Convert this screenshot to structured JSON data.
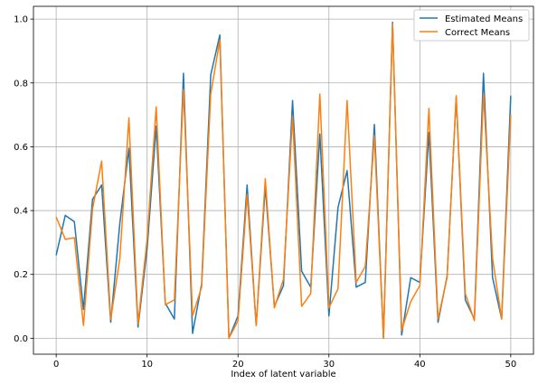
{
  "chart_data": {
    "type": "line",
    "title": "",
    "xlabel": "Index of latent variable",
    "ylabel": "",
    "xlim": [
      -2.5,
      52.5
    ],
    "ylim": [
      -0.05,
      1.04
    ],
    "xticks": [
      0,
      10,
      20,
      30,
      40,
      50
    ],
    "yticks": [
      0.0,
      0.2,
      0.4,
      0.6,
      0.8,
      1.0
    ],
    "grid": true,
    "legend_position": "top-right",
    "x": [
      0,
      1,
      2,
      3,
      4,
      5,
      6,
      7,
      8,
      9,
      10,
      11,
      12,
      13,
      14,
      15,
      16,
      17,
      18,
      19,
      20,
      21,
      22,
      23,
      24,
      25,
      26,
      27,
      28,
      29,
      30,
      31,
      32,
      33,
      34,
      35,
      36,
      37,
      38,
      39,
      40,
      41,
      42,
      43,
      44,
      45,
      46,
      47,
      48,
      49,
      50
    ],
    "series": [
      {
        "name": "Estimated Means",
        "color": "#1f77b4",
        "values": [
          0.26,
          0.385,
          0.365,
          0.09,
          0.435,
          0.48,
          0.05,
          0.36,
          0.595,
          0.035,
          0.28,
          0.665,
          0.11,
          0.06,
          0.83,
          0.015,
          0.17,
          0.825,
          0.95,
          0.0,
          0.07,
          0.48,
          0.04,
          0.475,
          0.1,
          0.165,
          0.745,
          0.21,
          0.16,
          0.64,
          0.07,
          0.41,
          0.525,
          0.16,
          0.175,
          0.67,
          0.0,
          0.99,
          0.01,
          0.19,
          0.175,
          0.645,
          0.05,
          0.195,
          0.755,
          0.12,
          0.06,
          0.83,
          0.19,
          0.06,
          0.76
        ]
      },
      {
        "name": "Correct Means",
        "color": "#ff7f0e",
        "values": [
          0.38,
          0.31,
          0.315,
          0.04,
          0.405,
          0.555,
          0.06,
          0.25,
          0.69,
          0.045,
          0.31,
          0.725,
          0.105,
          0.12,
          0.78,
          0.07,
          0.16,
          0.765,
          0.935,
          0.0,
          0.055,
          0.45,
          0.04,
          0.5,
          0.095,
          0.185,
          0.695,
          0.1,
          0.14,
          0.765,
          0.095,
          0.155,
          0.745,
          0.175,
          0.225,
          0.635,
          0.0,
          0.985,
          0.025,
          0.115,
          0.165,
          0.72,
          0.06,
          0.19,
          0.76,
          0.14,
          0.055,
          0.765,
          0.25,
          0.06,
          0.7
        ]
      }
    ]
  }
}
